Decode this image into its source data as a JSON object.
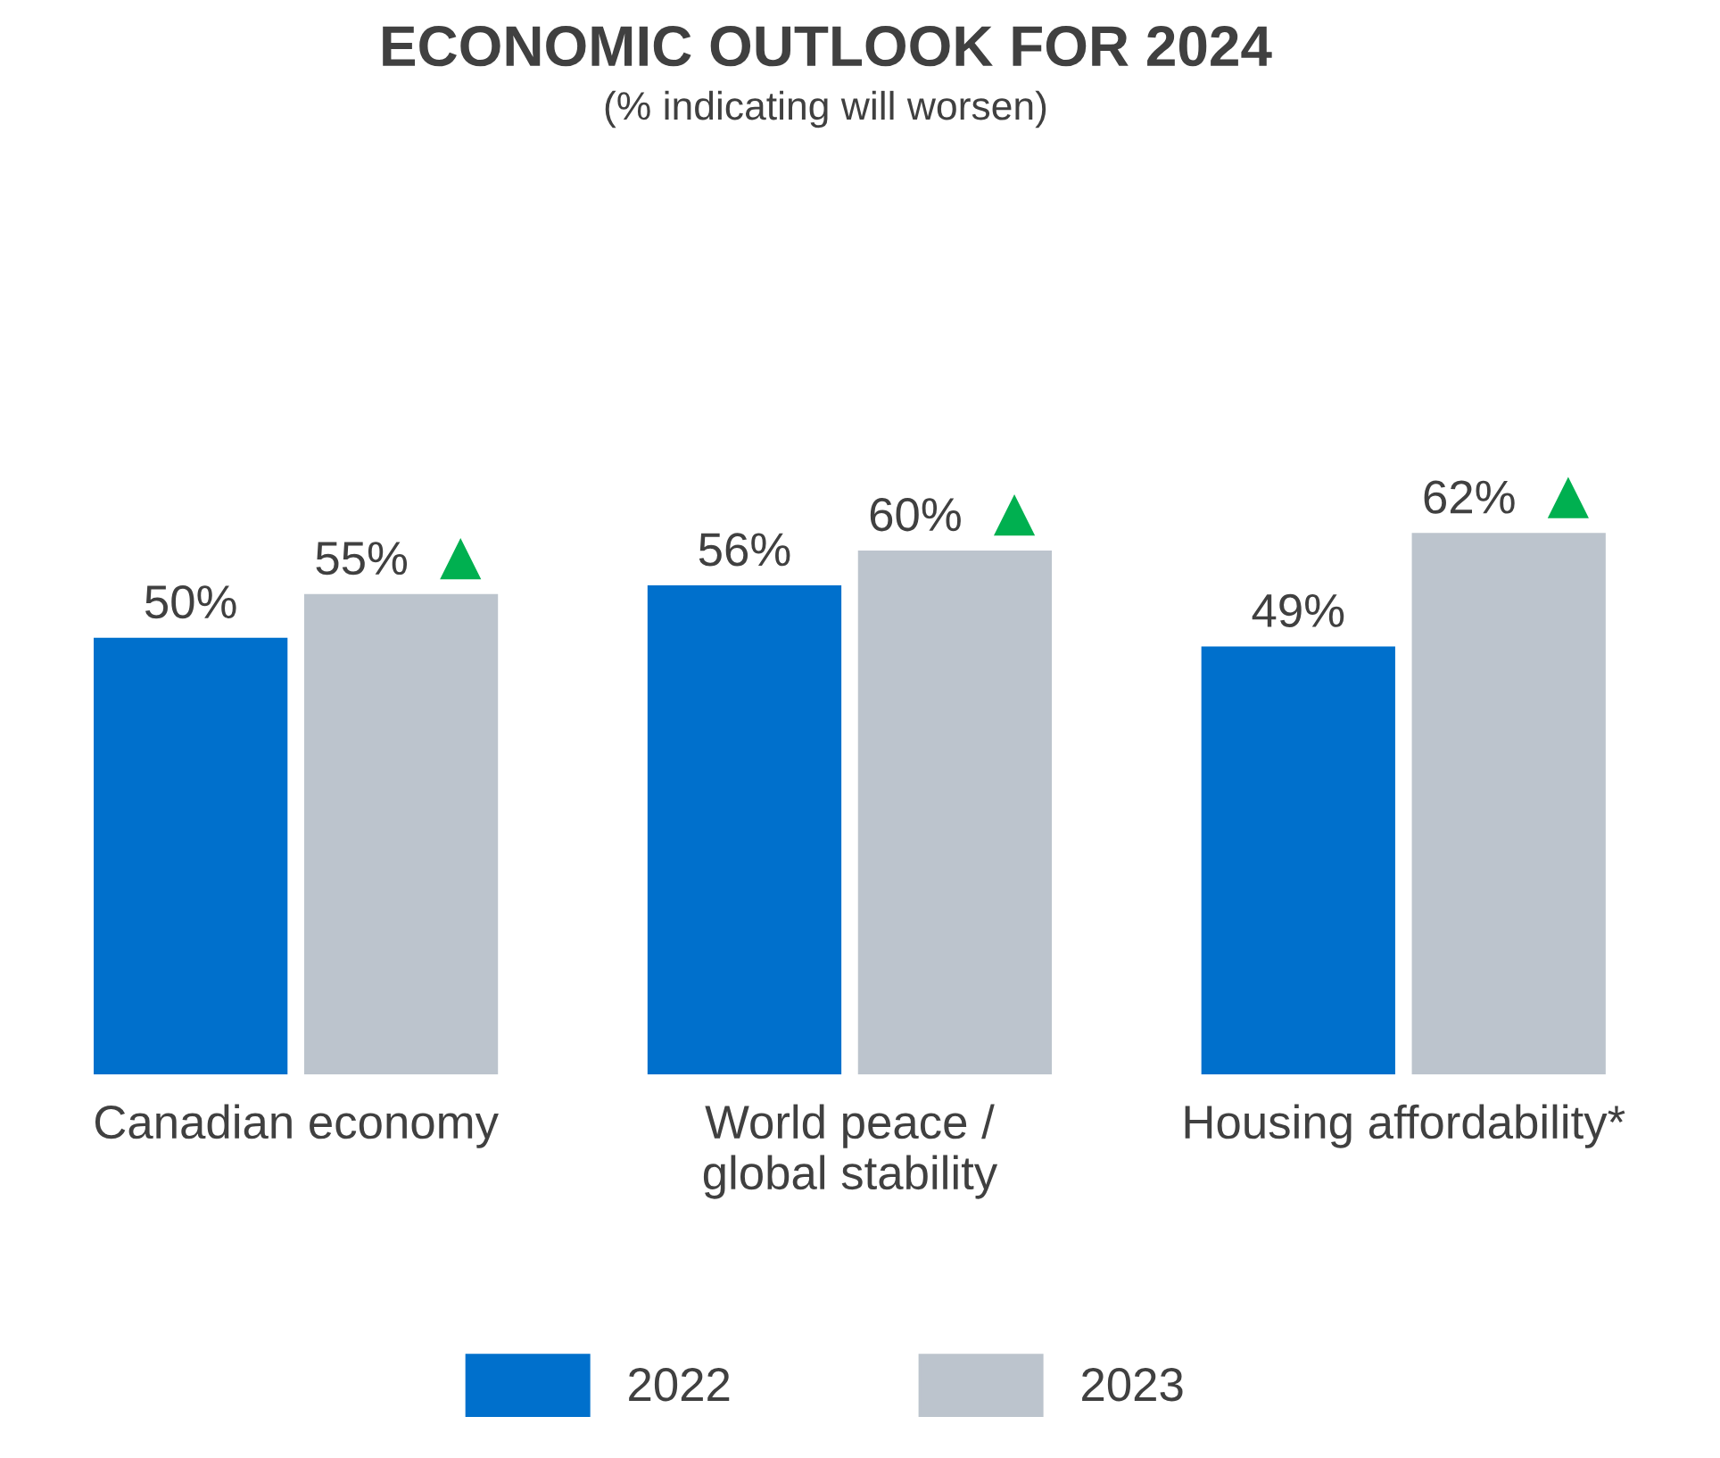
{
  "chart_data": {
    "type": "bar",
    "title": "ECONOMIC OUTLOOK FOR 2024",
    "subtitle": "(% indicating will worsen)",
    "categories": [
      "Canadian economy",
      "World peace /\nglobal stability",
      "Housing affordability*"
    ],
    "series": [
      {
        "name": "2022",
        "color": "#0070cc",
        "values": [
          50,
          56,
          49
        ],
        "value_labels": [
          "50%",
          "56%",
          "49%"
        ]
      },
      {
        "name": "2023",
        "color": "#bcc4cd",
        "values": [
          55,
          60,
          62
        ],
        "value_labels": [
          "55%",
          "60%",
          "62%"
        ]
      }
    ],
    "legend": "bottom",
    "grid": false
  }
}
